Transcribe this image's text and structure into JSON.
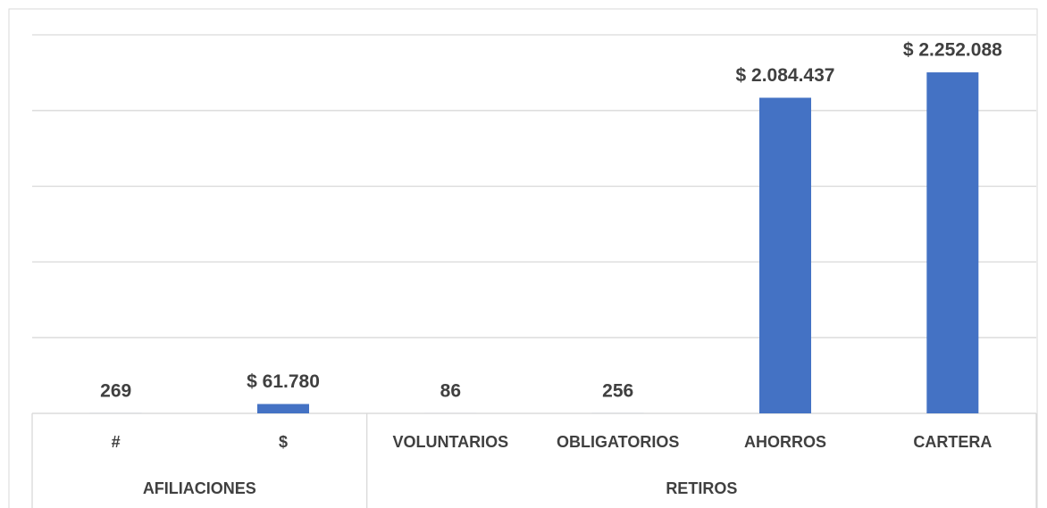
{
  "chart_data": {
    "type": "bar",
    "categories": [
      "#",
      "$",
      "VOLUNTARIOS",
      "OBLIGATORIOS",
      "AHORROS",
      "CARTERA"
    ],
    "groups": [
      "AFILIACIONES",
      "AFILIACIONES",
      "RETIROS",
      "RETIROS",
      "RETIROS",
      "RETIROS"
    ],
    "values": [
      269,
      61780,
      86,
      256,
      2084437,
      2252088
    ],
    "value_labels": [
      "269",
      "$ 61.780",
      "86",
      "256",
      "$ 2.084.437",
      "$ 2.252.088"
    ],
    "color": "#4472c4",
    "ylim": [
      0,
      2500000
    ],
    "yticks": [
      0,
      500000,
      1000000,
      1500000,
      2000000,
      2500000
    ],
    "grid": true
  }
}
